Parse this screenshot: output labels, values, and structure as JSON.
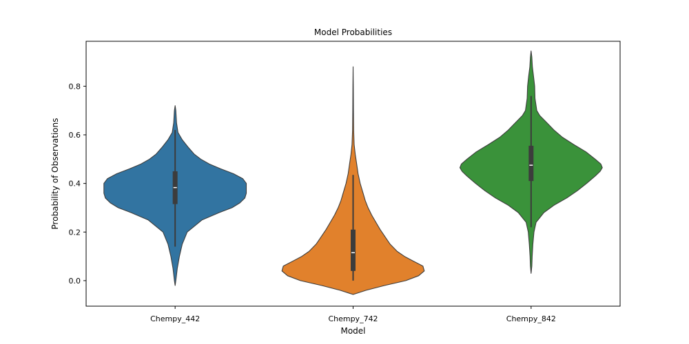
{
  "chart_data": {
    "type": "violin",
    "title": "Model Probabilities",
    "xlabel": "Model",
    "ylabel": "Probability of Observations",
    "ylim": [
      -0.105,
      0.985
    ],
    "yticks": [
      "0.0",
      "0.2",
      "0.4",
      "0.6",
      "0.8"
    ],
    "grid": false,
    "categories": [
      "Chempy_442",
      "Chempy_742",
      "Chempy_842"
    ],
    "violins": [
      {
        "color": "#3274a1",
        "extent": [
          -0.02,
          0.72
        ],
        "whisker": [
          0.14,
          0.62
        ],
        "q1": 0.315,
        "median": 0.383,
        "q3": 0.45,
        "density": [
          [
            -0.02,
            0.0
          ],
          [
            0.0,
            0.01
          ],
          [
            0.05,
            0.03
          ],
          [
            0.1,
            0.06
          ],
          [
            0.15,
            0.1
          ],
          [
            0.2,
            0.17
          ],
          [
            0.25,
            0.38
          ],
          [
            0.28,
            0.62
          ],
          [
            0.3,
            0.8
          ],
          [
            0.32,
            0.91
          ],
          [
            0.34,
            0.98
          ],
          [
            0.36,
            1.0
          ],
          [
            0.4,
            1.0
          ],
          [
            0.42,
            0.95
          ],
          [
            0.44,
            0.82
          ],
          [
            0.46,
            0.64
          ],
          [
            0.48,
            0.48
          ],
          [
            0.5,
            0.36
          ],
          [
            0.52,
            0.27
          ],
          [
            0.55,
            0.18
          ],
          [
            0.58,
            0.1
          ],
          [
            0.61,
            0.04
          ],
          [
            0.65,
            0.02
          ],
          [
            0.7,
            0.01
          ],
          [
            0.72,
            0.0
          ]
        ]
      },
      {
        "color": "#e1812c",
        "extent": [
          -0.057,
          0.88
        ],
        "whisker": [
          0.0,
          0.435
        ],
        "q1": 0.04,
        "median": 0.115,
        "q3": 0.21,
        "density": [
          [
            -0.057,
            0.0
          ],
          [
            -0.04,
            0.18
          ],
          [
            -0.02,
            0.44
          ],
          [
            0.0,
            0.74
          ],
          [
            0.02,
            0.92
          ],
          [
            0.04,
            1.0
          ],
          [
            0.06,
            0.98
          ],
          [
            0.08,
            0.85
          ],
          [
            0.1,
            0.72
          ],
          [
            0.12,
            0.62
          ],
          [
            0.15,
            0.52
          ],
          [
            0.18,
            0.45
          ],
          [
            0.21,
            0.38
          ],
          [
            0.24,
            0.32
          ],
          [
            0.27,
            0.26
          ],
          [
            0.3,
            0.21
          ],
          [
            0.33,
            0.17
          ],
          [
            0.36,
            0.14
          ],
          [
            0.4,
            0.1
          ],
          [
            0.44,
            0.07
          ],
          [
            0.48,
            0.05
          ],
          [
            0.52,
            0.03
          ],
          [
            0.56,
            0.015
          ],
          [
            0.62,
            0.008
          ],
          [
            0.7,
            0.005
          ],
          [
            0.8,
            0.003
          ],
          [
            0.88,
            0.0
          ]
        ]
      },
      {
        "color": "#3a923a",
        "extent": [
          0.03,
          0.945
        ],
        "whisker": [
          0.22,
          0.76
        ],
        "q1": 0.41,
        "median": 0.475,
        "q3": 0.555,
        "density": [
          [
            0.03,
            0.0
          ],
          [
            0.06,
            0.01
          ],
          [
            0.1,
            0.015
          ],
          [
            0.15,
            0.025
          ],
          [
            0.2,
            0.04
          ],
          [
            0.24,
            0.07
          ],
          [
            0.28,
            0.18
          ],
          [
            0.31,
            0.32
          ],
          [
            0.34,
            0.5
          ],
          [
            0.37,
            0.65
          ],
          [
            0.4,
            0.78
          ],
          [
            0.43,
            0.9
          ],
          [
            0.45,
            0.97
          ],
          [
            0.465,
            1.0
          ],
          [
            0.48,
            0.98
          ],
          [
            0.5,
            0.9
          ],
          [
            0.53,
            0.77
          ],
          [
            0.56,
            0.6
          ],
          [
            0.59,
            0.44
          ],
          [
            0.62,
            0.32
          ],
          [
            0.65,
            0.22
          ],
          [
            0.68,
            0.12
          ],
          [
            0.7,
            0.08
          ],
          [
            0.75,
            0.055
          ],
          [
            0.8,
            0.05
          ],
          [
            0.84,
            0.035
          ],
          [
            0.88,
            0.018
          ],
          [
            0.92,
            0.01
          ],
          [
            0.945,
            0.0
          ]
        ]
      }
    ]
  }
}
